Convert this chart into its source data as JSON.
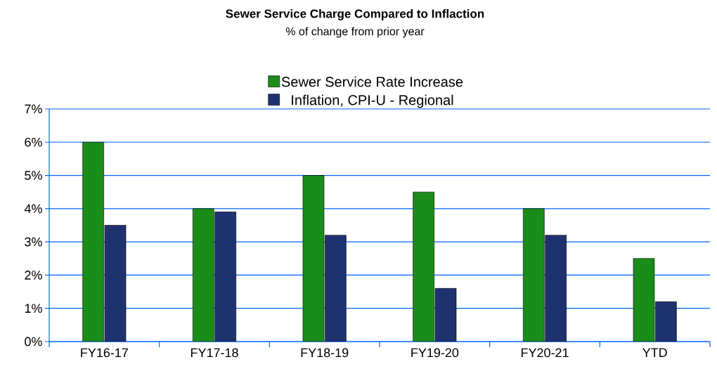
{
  "chart_data": {
    "type": "bar",
    "title": "Sewer Service Charge Compared to Inflaction",
    "subtitle": "% of change from prior year",
    "categories": [
      "FY16-17",
      "FY17-18",
      "FY18-19",
      "FY19-20",
      "FY20-21",
      "YTD"
    ],
    "series": [
      {
        "name": "Sewer Service Rate Increase",
        "color": "#1a8c1a",
        "values": [
          6,
          4,
          5,
          4.5,
          4,
          2.5
        ]
      },
      {
        "name": "Inflation, CPI-U - Regional",
        "color": "#1f3270",
        "values": [
          3.5,
          3.9,
          3.2,
          1.6,
          3.2,
          1.2
        ]
      }
    ],
    "ylim": [
      0,
      7
    ],
    "yticks": [
      {
        "value": 0,
        "label": "0%"
      },
      {
        "value": 1,
        "label": "1%"
      },
      {
        "value": 2,
        "label": "2%"
      },
      {
        "value": 3,
        "label": "3%"
      },
      {
        "value": 4,
        "label": "4%"
      },
      {
        "value": 5,
        "label": "5%"
      },
      {
        "value": 6,
        "label": "6%"
      },
      {
        "value": 7,
        "label": "7%"
      }
    ],
    "grid": "y",
    "legend": "top"
  }
}
